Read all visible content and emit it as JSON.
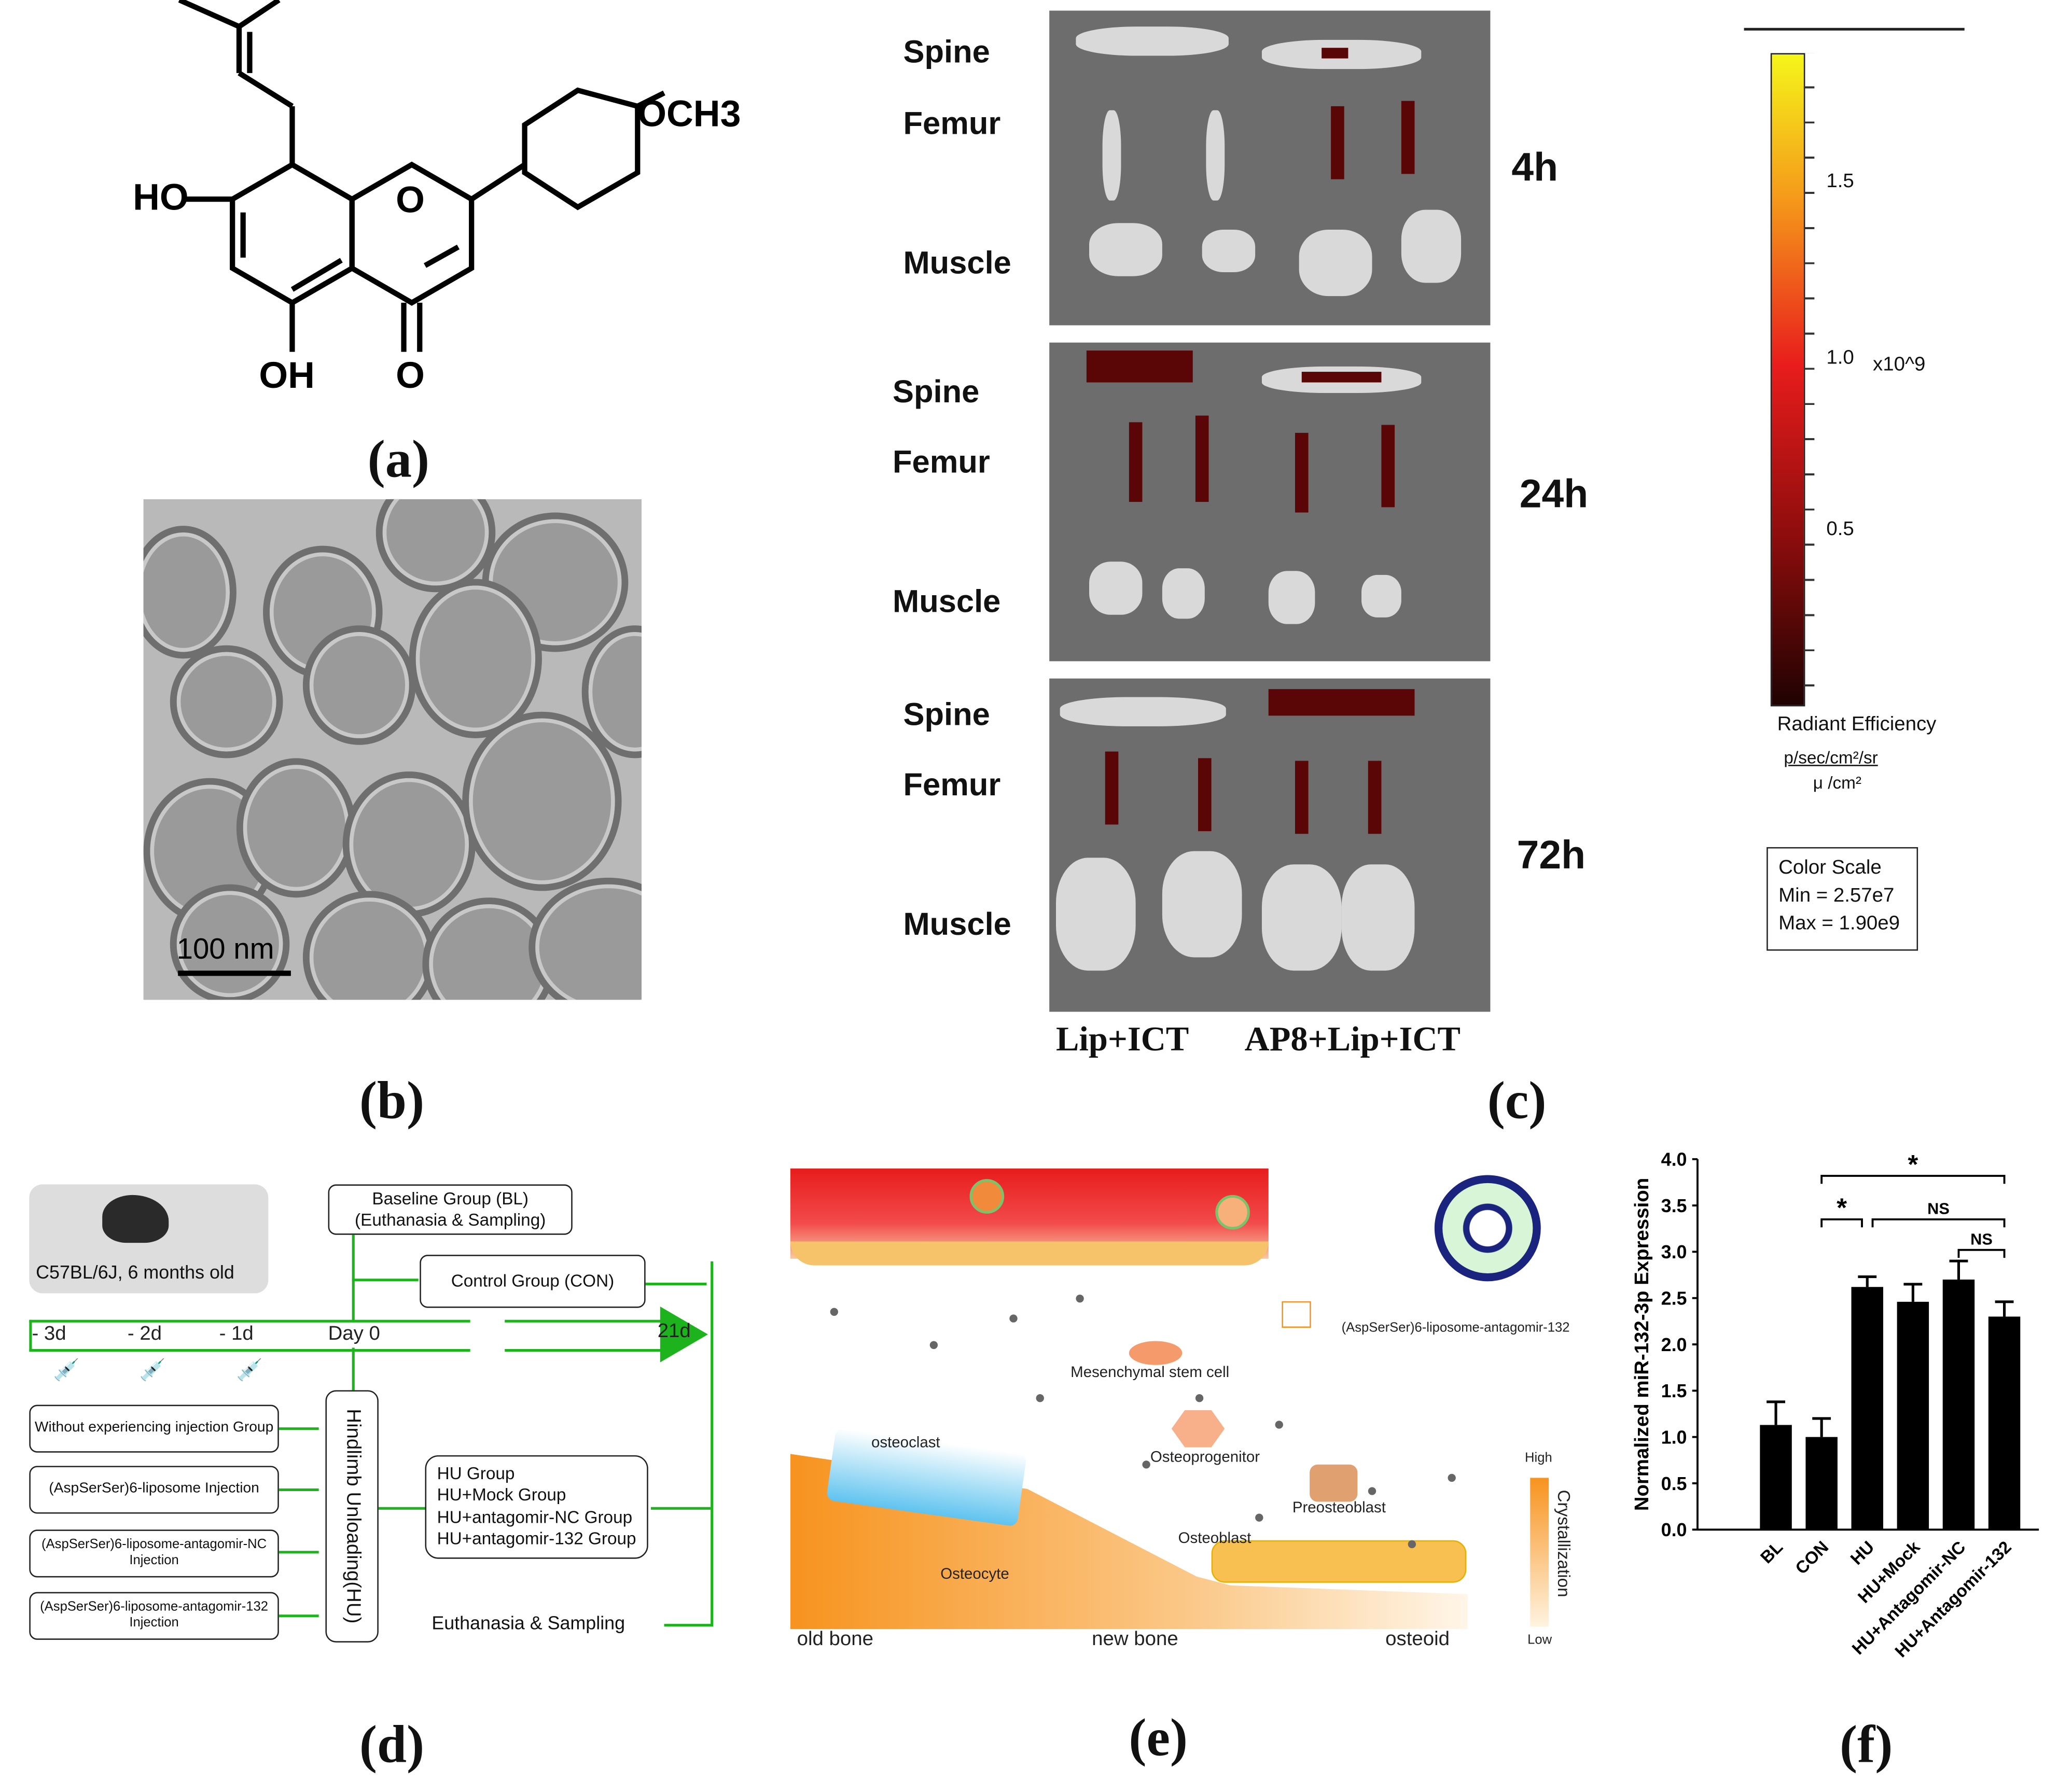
{
  "panel_labels": {
    "a": "(a)",
    "b": "(b)",
    "c": "(c)",
    "d": "(d)",
    "e": "(e)",
    "f": "(f)"
  },
  "panel_a": {
    "atoms": {
      "ho": "HO",
      "o_ring": "O",
      "och3": "OCH3",
      "oh": "OH",
      "o_keto": "O"
    }
  },
  "panel_b": {
    "scale_bar": "100 nm"
  },
  "panel_c": {
    "rows": [
      "Spine",
      "Femur",
      "Muscle"
    ],
    "timepoints": [
      "4h",
      "24h",
      "72h"
    ],
    "groups": [
      "Lip+ICT",
      "AP8+Lip+ICT"
    ],
    "colorbar": {
      "ticks": [
        "1.5",
        "1.0",
        "0.5"
      ],
      "multiplier": "x10^9",
      "title": "Radiant Efficiency",
      "units_num": "p/sec/cm²/sr",
      "units_den": "μ  /cm²",
      "scale_box": [
        "Color Scale",
        "Min = 2.57e7",
        "Max = 1.90e9"
      ],
      "colors": [
        "#f5f51a",
        "#f59a1a",
        "#e81c1c",
        "#8a0c0c",
        "#200202"
      ]
    }
  },
  "panel_d": {
    "mouse_label": "C57BL/6J, 6 months old",
    "baseline": [
      "Baseline Group (BL)",
      "(Euthanasia & Sampling)"
    ],
    "control": "Control Group (CON)",
    "timeline": [
      "- 3d",
      "- 2d",
      "- 1d",
      "Day 0",
      "21d"
    ],
    "injection_groups": [
      "Without experiencing injection Group",
      "(AspSerSer)6-liposome Injection",
      "(AspSerSer)6-liposome-antagomir-NC Injection",
      "(AspSerSer)6-liposome-antagomir-132 Injection"
    ],
    "unloading": "Hindlimb Unloading(HU)",
    "hu_groups": [
      "HU Group",
      "HU+Mock Group",
      "HU+antagomir-NC Group",
      "HU+antagomir-132 Group"
    ],
    "end": "Euthanasia & Sampling",
    "accent": "#1db31d"
  },
  "panel_e": {
    "nanoparticle": "(AspSerSer)6-liposome-antagomir-132",
    "cells": [
      "Mesenchymal stem cell",
      "Osteoprogenitor",
      "Preosteoblast",
      "osteoclast",
      "Osteoblast",
      "Osteocyte"
    ],
    "bone": [
      "old bone",
      "new bone",
      "osteoid"
    ],
    "scale": {
      "high": "High",
      "low": "Low",
      "title": "Crystallization"
    }
  },
  "chart_data": {
    "type": "bar",
    "title": "",
    "xlabel": "",
    "ylabel": "Normalized miR-132-3p Expression",
    "ylim": [
      0,
      4.0
    ],
    "yticks": [
      "0.0",
      "0.5",
      "1.0",
      "1.5",
      "2.0",
      "2.5",
      "3.0",
      "3.5",
      "4.0"
    ],
    "categories": [
      "BL",
      "CON",
      "HU",
      "HU+Mock",
      "HU+Antagomir-NC",
      "HU+Antagomir-132"
    ],
    "values": [
      1.13,
      1.0,
      2.62,
      2.46,
      2.7,
      2.3
    ],
    "errors": [
      0.25,
      0.2,
      0.11,
      0.19,
      0.2,
      0.16
    ],
    "significance": [
      {
        "from": "CON",
        "to": "HU+Antagomir-132",
        "label": "*"
      },
      {
        "from": "CON",
        "to": "HU",
        "label": "*"
      },
      {
        "from": "HU",
        "to": "HU+Antagomir-132",
        "label": "NS"
      },
      {
        "from": "HU+Antagomir-NC",
        "to": "HU+Antagomir-132",
        "label": "NS"
      }
    ],
    "grid": false
  }
}
